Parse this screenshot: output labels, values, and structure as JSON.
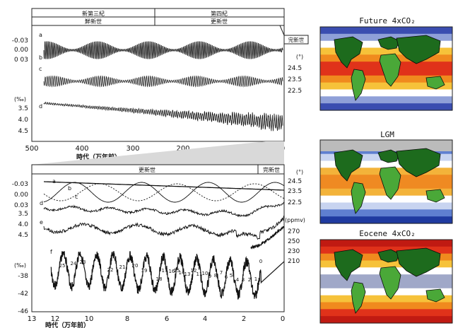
{
  "top_panel": {
    "period_left": "新第三紀",
    "period_right": "第四紀",
    "epoch_left": "鮮新世",
    "epoch_right": "更新世",
    "epoch_recent": "完新世",
    "curve_labels": [
      "a",
      "b",
      "c",
      "d"
    ],
    "left_ticks_top": [
      "-0.03",
      "0.00",
      "0 03"
    ],
    "left_unit": "(‰)",
    "left_ticks_bottom": [
      "3.5",
      "4.0",
      "4.5"
    ],
    "right_unit": "(°)",
    "right_ticks": [
      "24.5",
      "23.5",
      "22.5"
    ],
    "x_ticks": [
      "500",
      "400",
      "300",
      "200",
      "100",
      "0"
    ],
    "x_label": "時代（万年前）"
  },
  "bottom_panel": {
    "epoch_main": "更新世",
    "epoch_recent": "完新世",
    "curve_labels": [
      "a",
      "b",
      "c",
      "d",
      "e",
      "f"
    ],
    "left_ticks_top": [
      "-0.03",
      "0.00",
      "0.03"
    ],
    "left_ticks_mid": [
      "3.5",
      "4.0",
      "4.5"
    ],
    "left_unit": "(‰)",
    "left_ticks_bottom": [
      "-38",
      "-42",
      "-46"
    ],
    "right_unit_deg": "(°)",
    "right_ticks_deg": [
      "24.5",
      "23.5",
      "22.5"
    ],
    "right_unit_co2": "(ppmv)",
    "right_ticks_co2": [
      "270",
      "250",
      "230",
      "210"
    ],
    "stage_numbers": [
      "25",
      "24",
      "23",
      "22",
      "21",
      "20",
      "19",
      "18",
      "17",
      "16",
      "15",
      "14",
      "13",
      "12",
      "11",
      "10",
      "9",
      "8",
      "7",
      "6",
      "5",
      "4",
      "3",
      "2",
      "1",
      "0"
    ],
    "x_ticks": [
      "13",
      "12",
      "10",
      "8",
      "6",
      "4",
      "2",
      "0"
    ],
    "x_label": "時代（万年前）"
  },
  "maps": [
    {
      "title": "Future  4xCO₂"
    },
    {
      "title": "LGM"
    },
    {
      "title": "Eocene  4xCO₂"
    }
  ],
  "colors": {
    "ocean_future": [
      "#3a4db0",
      "#8fa0d8",
      "#ffffff",
      "#f6c23a",
      "#f08a1e",
      "#e0321a"
    ],
    "ocean_lgm": [
      "#1f3aa0",
      "#5f7fd0",
      "#c8d4f0",
      "#ffffff",
      "#f3b33a",
      "#ef8a22"
    ],
    "ocean_eocene": [
      "#c01a12",
      "#e0321a",
      "#f08a1e",
      "#f6c23a",
      "#ffffff",
      "#a0a8c8"
    ],
    "land": "#4aa838",
    "land_dark": "#1d6b1d",
    "ice": "#bbbbbb"
  }
}
